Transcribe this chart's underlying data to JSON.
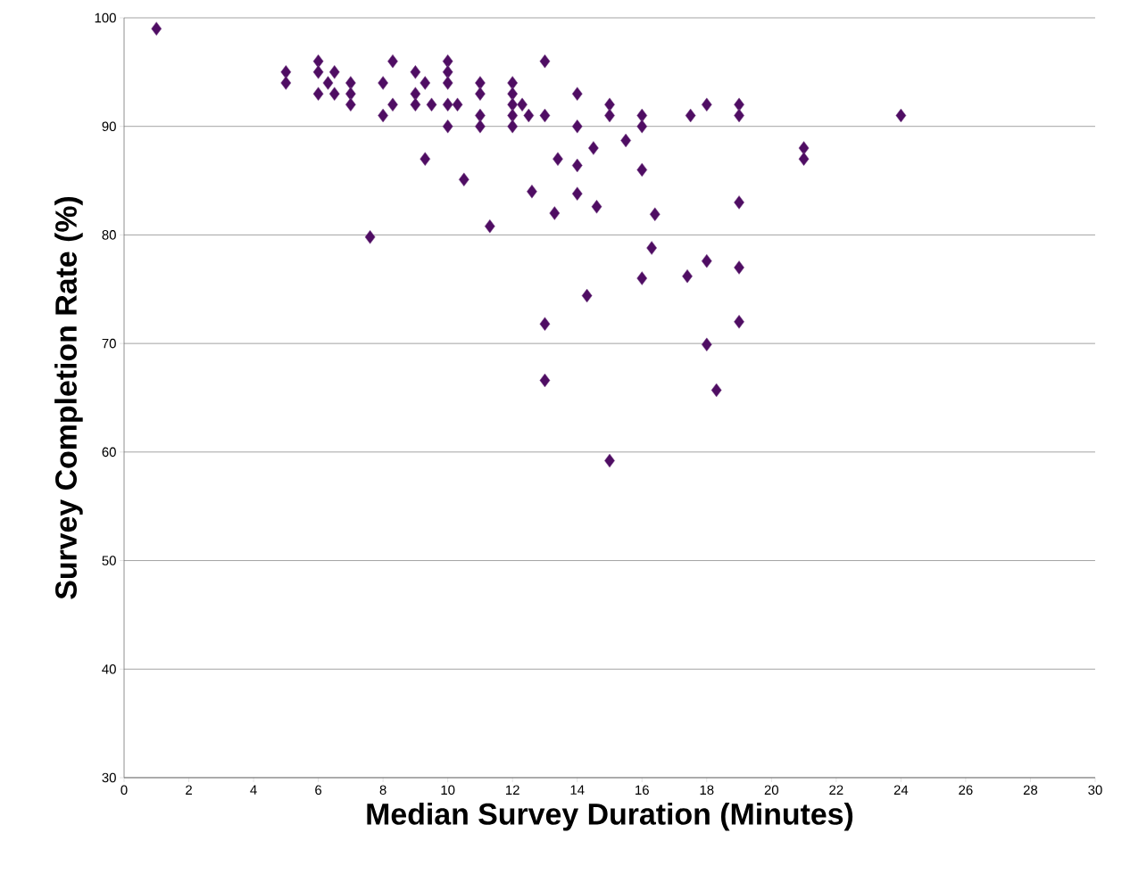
{
  "chart_data": {
    "type": "scatter",
    "xlabel": "Median Survey Duration (Minutes)",
    "ylabel": "Survey Completion Rate (%)",
    "xlim": [
      0,
      30
    ],
    "xticks": [
      0,
      2,
      4,
      6,
      8,
      10,
      12,
      14,
      16,
      18,
      20,
      22,
      24,
      26,
      28,
      30
    ],
    "ylim": [
      30,
      100
    ],
    "yticks": [
      30,
      40,
      50,
      60,
      70,
      80,
      90,
      100
    ],
    "grid": "y",
    "marker": "diamond",
    "series": [
      {
        "color": "#4f0d63",
        "x": [
          1,
          5,
          5,
          6,
          6,
          6,
          6.3,
          6.5,
          6.5,
          7,
          7,
          7,
          7.6,
          8,
          8,
          8.3,
          8.3,
          9,
          9,
          9,
          9.3,
          9.3,
          9.5,
          10,
          10,
          10,
          10,
          10,
          10.3,
          10.5,
          11,
          11,
          11,
          11,
          11.3,
          12,
          12,
          12,
          12,
          12,
          12.3,
          12.5,
          12.6,
          13,
          13,
          13,
          13,
          13.3,
          13.4,
          14,
          14,
          14,
          14,
          14.3,
          14.5,
          14.6,
          15,
          15,
          15,
          15.5,
          16,
          16,
          16,
          16,
          16.3,
          16.4,
          17.4,
          17.5,
          18,
          18,
          18,
          18.3,
          19,
          19,
          19,
          19,
          19,
          21,
          21,
          24
        ],
        "values": [
          99,
          95,
          94,
          96,
          95,
          93,
          94,
          95,
          93,
          94,
          93,
          92,
          79.8,
          94,
          91,
          96,
          92,
          95,
          93,
          92,
          94,
          87,
          92,
          96,
          95,
          94,
          92,
          90,
          92,
          85.1,
          94,
          93,
          91,
          90,
          80.8,
          94,
          93,
          92,
          91,
          90,
          92,
          91,
          84,
          96,
          91,
          71.8,
          66.6,
          82,
          87,
          93,
          90,
          86.4,
          83.8,
          74.4,
          88,
          82.6,
          92,
          91,
          59.2,
          88.7,
          91,
          90,
          86,
          76,
          78.8,
          81.9,
          76.2,
          91,
          92,
          77.6,
          69.9,
          65.7,
          92,
          91,
          83,
          77,
          72,
          88,
          87,
          91
        ]
      }
    ]
  }
}
